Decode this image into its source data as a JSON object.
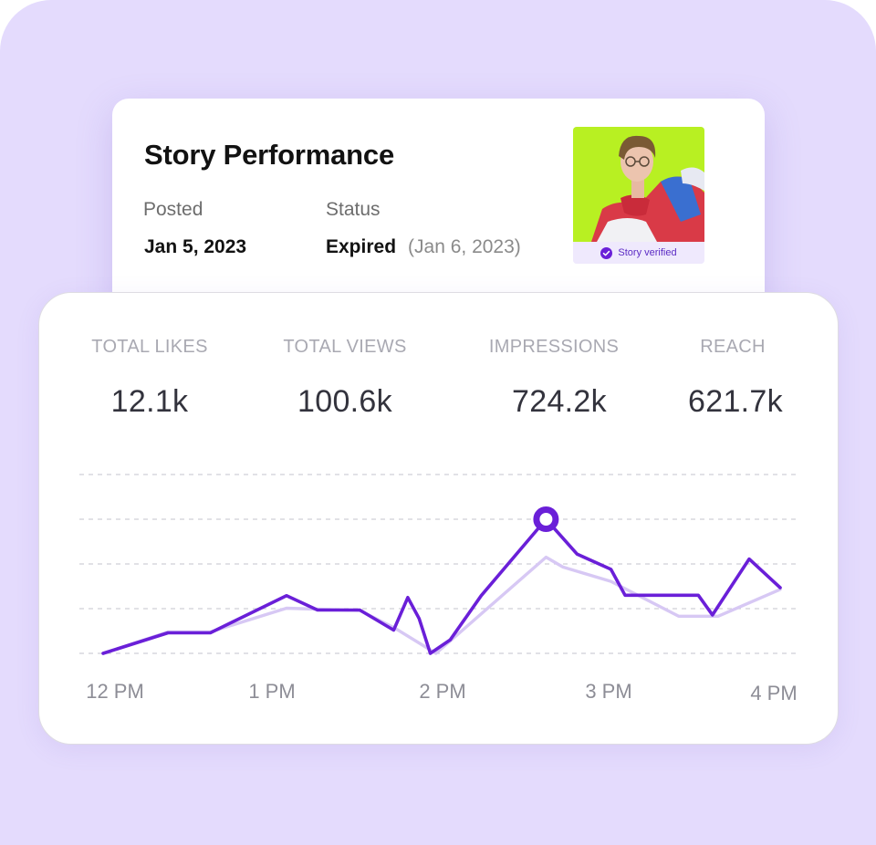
{
  "story": {
    "title": "Story Performance",
    "posted_label": "Posted",
    "posted_value": "Jan 5, 2023",
    "status_label": "Status",
    "status_value": "Expired",
    "status_date": "(Jan 6, 2023)",
    "verified_label": "Story verified",
    "verified_icon": "check-circle-icon"
  },
  "stats": [
    {
      "label": "TOTAL LIKES",
      "value": "12.1k"
    },
    {
      "label": "TOTAL VIEWS",
      "value": "100.6k"
    },
    {
      "label": "IMPRESSIONS",
      "value": "724.2k"
    },
    {
      "label": "REACH",
      "value": "621.7k"
    }
  ],
  "colors": {
    "background": "#e4dbfd",
    "accent": "#6a1fd8",
    "accent_light": "#d7c8f4",
    "thumb_bg": "#b8f022"
  },
  "chart_data": {
    "type": "line",
    "x_tick_labels": [
      "12 PM",
      "1 PM",
      "2 PM",
      "3 PM",
      "4 PM"
    ],
    "xlim": [
      0,
      240
    ],
    "ylim": [
      0,
      4
    ],
    "grid": "horizontal-dashed",
    "highlight_point": {
      "x": 157,
      "y": 3
    },
    "series": [
      {
        "values": [
          [
            0,
            0
          ],
          [
            23,
            0.46
          ],
          [
            38,
            0.46
          ],
          [
            65,
            1.29
          ],
          [
            76,
            0.97
          ],
          [
            91,
            0.97
          ],
          [
            103,
            0.52
          ],
          [
            108,
            1.25
          ],
          [
            112,
            0.78
          ],
          [
            116,
            0
          ],
          [
            123,
            0.3
          ],
          [
            134,
            1.29
          ],
          [
            157,
            3
          ],
          [
            168,
            2.22
          ],
          [
            180,
            1.88
          ],
          [
            185,
            1.3
          ],
          [
            211,
            1.3
          ],
          [
            216,
            0.86
          ],
          [
            229,
            2.11
          ],
          [
            240,
            1.47
          ]
        ]
      },
      {
        "values": [
          [
            0,
            0
          ],
          [
            23,
            0.48
          ],
          [
            38,
            0.48
          ],
          [
            65,
            1.01
          ],
          [
            91,
            0.96
          ],
          [
            103,
            0.58
          ],
          [
            118,
            0
          ],
          [
            157,
            2.15
          ],
          [
            163,
            1.93
          ],
          [
            180,
            1.61
          ],
          [
            204,
            0.83
          ],
          [
            218,
            0.83
          ],
          [
            240,
            1.43
          ]
        ]
      }
    ]
  }
}
